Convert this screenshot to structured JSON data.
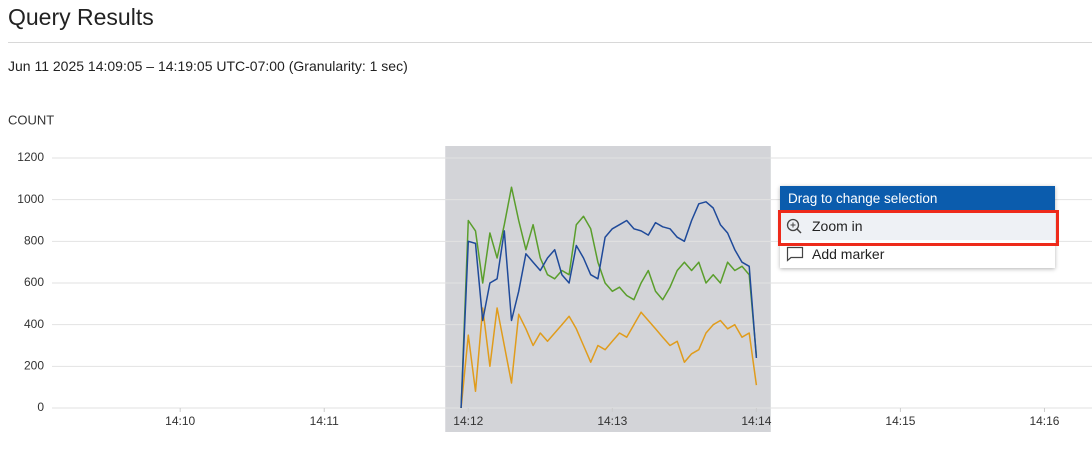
{
  "header": {
    "title": "Query Results",
    "subtitle": "Jun 11 2025 14:09:05 – 14:19:05 UTC-07:00 (Granularity: 1 sec)"
  },
  "chart_data": {
    "type": "line",
    "y_label": "COUNT",
    "x": [
      851.95,
      852.0,
      852.05,
      852.1,
      852.15,
      852.2,
      852.25,
      852.3,
      852.35,
      852.4,
      852.45,
      852.5,
      852.55,
      852.6,
      852.65,
      852.7,
      852.75,
      852.8,
      852.85,
      852.9,
      852.95,
      853.0,
      853.05,
      853.1,
      853.15,
      853.2,
      853.25,
      853.3,
      853.35,
      853.4,
      853.45,
      853.5,
      853.55,
      853.6,
      853.65,
      853.7,
      853.75,
      853.8,
      853.85,
      853.9,
      853.95,
      854.0
    ],
    "xlim": [
      849.11,
      856.33
    ],
    "xticks": [
      {
        "value": 850,
        "label": "14:10"
      },
      {
        "value": 851,
        "label": "14:11"
      },
      {
        "value": 852,
        "label": "14:12"
      },
      {
        "value": 853,
        "label": "14:13"
      },
      {
        "value": 854,
        "label": "14:14"
      },
      {
        "value": 855,
        "label": "14:15"
      },
      {
        "value": 856,
        "label": "14:16"
      }
    ],
    "ylim": [
      0,
      1200
    ],
    "yticks": [
      0,
      200,
      400,
      600,
      800,
      1000,
      1200
    ],
    "grid": true,
    "selection": [
      851.84,
      854.1
    ],
    "series": [
      {
        "color": "#5a9e2c",
        "values": [
          0,
          900,
          850,
          600,
          840,
          720,
          880,
          1060,
          900,
          760,
          880,
          720,
          640,
          620,
          660,
          640,
          880,
          920,
          860,
          700,
          600,
          560,
          580,
          540,
          520,
          600,
          660,
          560,
          520,
          580,
          660,
          700,
          660,
          700,
          600,
          640,
          600,
          700,
          660,
          680,
          640,
          250
        ]
      },
      {
        "color": "#e09c1c",
        "values": [
          0,
          350,
          80,
          480,
          200,
          480,
          300,
          120,
          450,
          380,
          300,
          360,
          320,
          360,
          400,
          440,
          380,
          300,
          220,
          300,
          280,
          320,
          360,
          340,
          400,
          460,
          420,
          380,
          340,
          300,
          320,
          220,
          260,
          280,
          360,
          400,
          420,
          380,
          400,
          340,
          360,
          110
        ]
      },
      {
        "color": "#1f4a9a",
        "values": [
          0,
          800,
          790,
          420,
          600,
          620,
          850,
          420,
          560,
          740,
          700,
          660,
          720,
          760,
          640,
          600,
          780,
          720,
          640,
          620,
          820,
          860,
          880,
          900,
          860,
          850,
          830,
          890,
          870,
          860,
          820,
          800,
          900,
          980,
          990,
          960,
          880,
          840,
          760,
          700,
          680,
          240
        ]
      }
    ]
  },
  "menu": {
    "header": "Drag to change selection",
    "items": [
      "Zoom in",
      "Add marker"
    ]
  }
}
